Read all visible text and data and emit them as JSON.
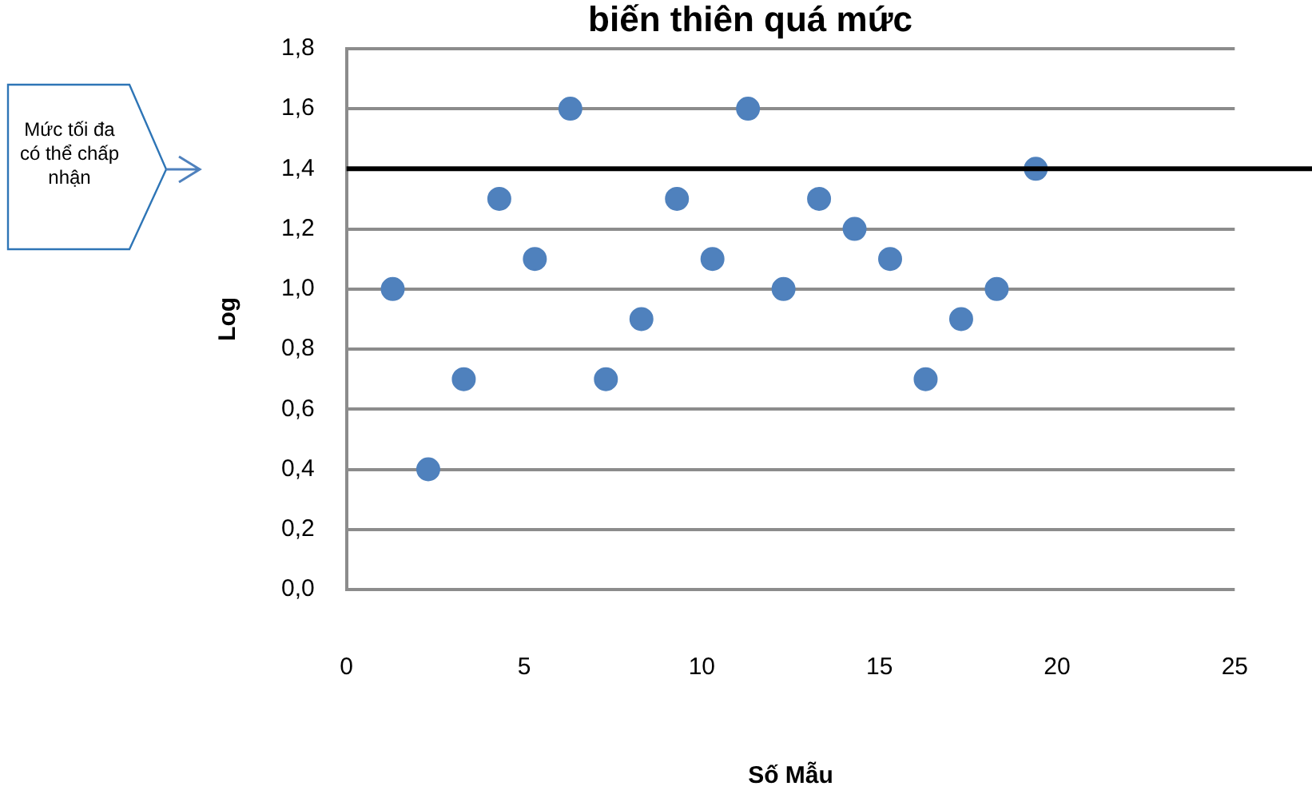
{
  "chart_data": {
    "type": "scatter",
    "title": "biến thiên quá mức",
    "xlabel": "Số Mẫu",
    "ylabel": "Log",
    "x": [
      1.3,
      2.3,
      3.3,
      4.3,
      5.3,
      6.3,
      7.3,
      8.3,
      9.3,
      10.3,
      11.3,
      12.3,
      13.3,
      14.3,
      15.3,
      16.3,
      17.3,
      18.3,
      19.4
    ],
    "series": [
      {
        "color": "#4f81bd",
        "values": [
          1.0,
          0.4,
          0.7,
          1.3,
          1.1,
          1.6,
          0.7,
          0.9,
          1.3,
          1.1,
          1.6,
          1.0,
          1.3,
          1.2,
          1.1,
          0.7,
          0.9,
          1.0,
          1.4
        ]
      }
    ],
    "xlim": [
      0,
      25
    ],
    "xticks": [
      0,
      5,
      10,
      15,
      20,
      25
    ],
    "ylim": [
      0,
      1.8
    ],
    "yticks": [
      {
        "value": 0,
        "label": "0,0"
      },
      {
        "value": 0.2,
        "label": "0,2"
      },
      {
        "value": 0.4,
        "label": "0,4"
      },
      {
        "value": 0.6,
        "label": "0,6"
      },
      {
        "value": 0.8,
        "label": "0,8"
      },
      {
        "value": 1.0,
        "label": "1,0"
      },
      {
        "value": 1.2,
        "label": "1,2"
      },
      {
        "value": 1.4,
        "label": "1,4"
      },
      {
        "value": 1.6,
        "label": "1,6"
      },
      {
        "value": 1.8,
        "label": "1,8"
      }
    ],
    "ref_lines": [
      {
        "axis": "y",
        "value": 1.4,
        "label": "Mức tối đa có thể chấp nhận",
        "color": "#000000"
      }
    ],
    "grid": "y",
    "legend": false,
    "marker": "circle"
  }
}
